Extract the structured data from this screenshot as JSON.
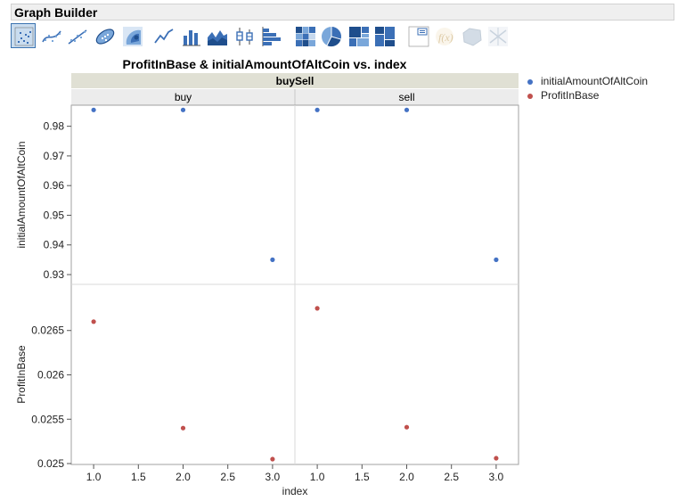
{
  "window": {
    "title": "Graph Builder"
  },
  "toolbar": {
    "buttons": [
      {
        "name": "points-icon",
        "state": "active"
      },
      {
        "name": "smoother-icon",
        "state": "normal"
      },
      {
        "name": "line-of-fit-icon",
        "state": "normal"
      },
      {
        "name": "ellipse-icon",
        "state": "normal"
      },
      {
        "name": "contour-icon",
        "state": "normal"
      },
      {
        "name": "line-icon",
        "state": "normal"
      },
      {
        "name": "bar-icon",
        "state": "normal"
      },
      {
        "name": "area-icon",
        "state": "normal"
      },
      {
        "name": "box-plot-icon",
        "state": "normal"
      },
      {
        "name": "histogram-icon",
        "state": "normal"
      },
      {
        "name": "heatmap-icon",
        "state": "normal"
      },
      {
        "name": "pie-icon",
        "state": "normal"
      },
      {
        "name": "treemap-icon",
        "state": "normal"
      },
      {
        "name": "mosaic-icon",
        "state": "normal"
      },
      {
        "name": "caption-box-icon",
        "state": "normal"
      },
      {
        "name": "formula-icon",
        "state": "disabled"
      },
      {
        "name": "map-shapes-icon",
        "state": "disabled"
      },
      {
        "name": "parallel-plot-icon",
        "state": "disabled"
      }
    ]
  },
  "colors": {
    "blue": "#4472c4",
    "red": "#c0504d",
    "grid": "#d9d9d9",
    "header": "#e0e0d4",
    "subheader": "#ececec"
  },
  "chart_data": {
    "type": "scatter",
    "title": "ProfitInBase & initialAmountOfAltCoin vs. index",
    "group_label": "buySell",
    "groups": [
      "buy",
      "sell"
    ],
    "xlabel": "index",
    "xlim": [
      0.75,
      3.25
    ],
    "xticks": [
      "1.0",
      "1.5",
      "2.0",
      "2.5",
      "3.0"
    ],
    "panels": [
      {
        "ylabel": "initialAmountOfAltCoin",
        "ylim": [
          0.9267,
          0.9871
        ],
        "yticks": [
          "0.93",
          "0.94",
          "0.95",
          "0.96",
          "0.97",
          "0.98"
        ],
        "series": [
          {
            "name": "initialAmountOfAltCoin",
            "color": "#4472c4",
            "groups": {
              "buy": [
                {
                  "x": 1,
                  "y": 0.9855
                },
                {
                  "x": 2,
                  "y": 0.9855
                },
                {
                  "x": 3,
                  "y": 0.935
                }
              ],
              "sell": [
                {
                  "x": 1,
                  "y": 0.9855
                },
                {
                  "x": 2,
                  "y": 0.9855
                },
                {
                  "x": 3,
                  "y": 0.935
                }
              ]
            }
          }
        ]
      },
      {
        "ylabel": "ProfitInBase",
        "ylim": [
          0.02499,
          0.02702
        ],
        "yticks": [
          "0.025",
          "0.0255",
          "0.026",
          "0.0265"
        ],
        "series": [
          {
            "name": "ProfitInBase",
            "color": "#c0504d",
            "groups": {
              "buy": [
                {
                  "x": 1,
                  "y": 0.0266
                },
                {
                  "x": 2,
                  "y": 0.0254
                },
                {
                  "x": 3,
                  "y": 0.02505
                }
              ],
              "sell": [
                {
                  "x": 1,
                  "y": 0.02675
                },
                {
                  "x": 2,
                  "y": 0.02541
                },
                {
                  "x": 3,
                  "y": 0.02506
                }
              ]
            }
          }
        ]
      }
    ],
    "legend": {
      "position": "right",
      "entries": [
        {
          "label": "initialAmountOfAltCoin",
          "color": "#4472c4"
        },
        {
          "label": "ProfitInBase",
          "color": "#c0504d"
        }
      ]
    },
    "grid": true
  }
}
